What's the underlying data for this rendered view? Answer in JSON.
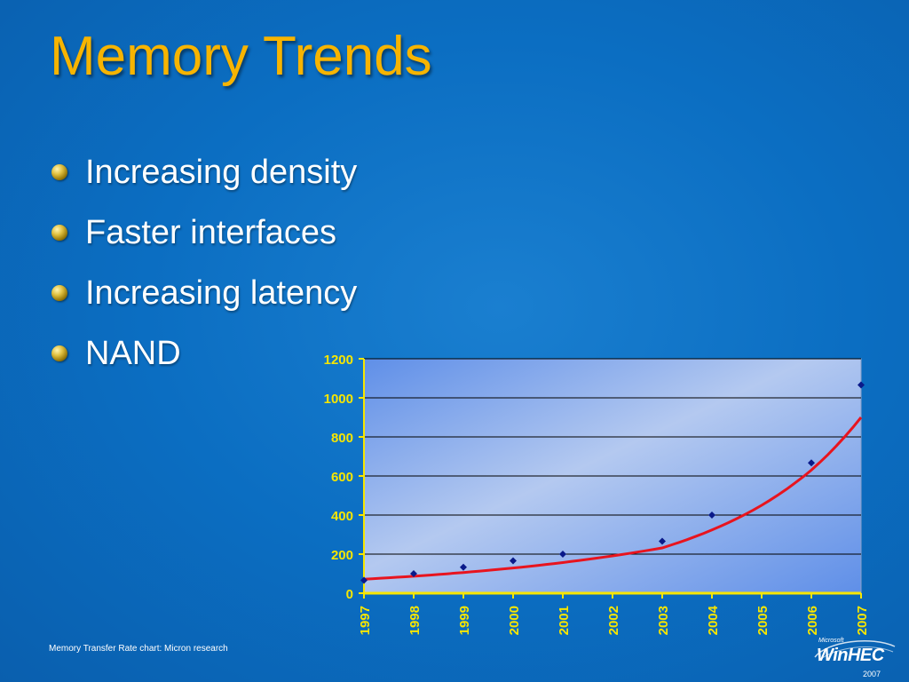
{
  "slide": {
    "title": "Memory Trends",
    "bullets": [
      "Increasing density",
      "Faster interfaces",
      "Increasing latency",
      "NAND"
    ],
    "footer": "Memory Transfer Rate chart: Micron research",
    "logo": {
      "brand": "Microsoft",
      "name": "WinHEC",
      "year": "2007"
    }
  },
  "colors": {
    "title": "#f7b400",
    "axis_labels": "#f7e600",
    "points": "#0a1a8a",
    "trend": "#e8141e",
    "axis": "#f7e600"
  },
  "chart_data": {
    "type": "scatter",
    "categories": [
      "1997",
      "1998",
      "1999",
      "2000",
      "2001",
      "2002",
      "2003",
      "2004",
      "2005",
      "2006",
      "2007"
    ],
    "yticks": [
      "0",
      "200",
      "400",
      "600",
      "800",
      "1000",
      "1200"
    ],
    "ylim": [
      0,
      1200
    ],
    "grid": true,
    "series": [
      {
        "values": [
          66,
          100,
          133,
          166,
          200,
          null,
          266,
          400,
          null,
          667,
          1066
        ]
      }
    ],
    "trendline": {
      "type": "exponential",
      "values": [
        72,
        87,
        106,
        129,
        157,
        191,
        232,
        324,
        450,
        630,
        900
      ]
    }
  }
}
